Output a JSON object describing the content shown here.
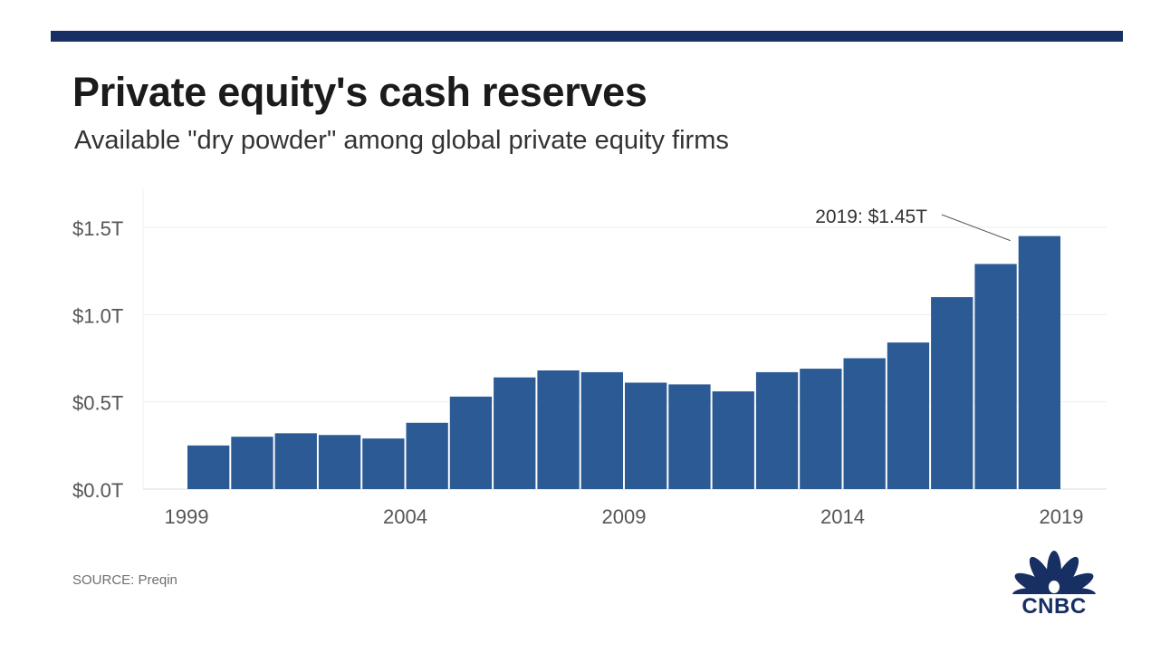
{
  "header": {
    "title": "Private equity's cash reserves",
    "subtitle": "Available \"dry powder\" among global private equity firms"
  },
  "footer": {
    "source": "SOURCE: Preqin",
    "logo_text": "CNBC"
  },
  "colors": {
    "bar": "#2b5a94",
    "top_rule": "#172f63",
    "grid": "#eeeeee",
    "axis_text": "#555555",
    "logo": "#172f63"
  },
  "chart_data": {
    "type": "bar",
    "title": "Private equity's cash reserves",
    "subtitle": "Available \"dry powder\" among global private equity firms",
    "categories": [
      2000,
      2001,
      2002,
      2003,
      2004,
      2005,
      2006,
      2007,
      2008,
      2009,
      2010,
      2011,
      2012,
      2013,
      2014,
      2015,
      2016,
      2017,
      2018,
      2019
    ],
    "values": [
      0.25,
      0.3,
      0.32,
      0.31,
      0.29,
      0.38,
      0.53,
      0.64,
      0.68,
      0.67,
      0.61,
      0.6,
      0.56,
      0.67,
      0.69,
      0.75,
      0.84,
      1.1,
      1.29,
      1.45
    ],
    "unit": "trillion USD",
    "ylim": [
      0,
      1.5
    ],
    "y_ticks": [
      {
        "value": 1.5,
        "label": "$1.5T"
      },
      {
        "value": 1.0,
        "label": "$1.0T"
      },
      {
        "value": 0.5,
        "label": "$0.5T"
      },
      {
        "value": 0.0,
        "label": "$0.0T"
      }
    ],
    "x_ticks": [
      {
        "value": 1999,
        "label": "1999"
      },
      {
        "value": 2004,
        "label": "2004"
      },
      {
        "value": 2009,
        "label": "2009"
      },
      {
        "value": 2014,
        "label": "2014"
      },
      {
        "value": 2019,
        "label": "2019"
      }
    ],
    "xlim": [
      1999,
      2019
    ],
    "grid": true,
    "annotation": {
      "text": "2019: $1.45T",
      "year": 2019,
      "value": 1.45
    }
  }
}
